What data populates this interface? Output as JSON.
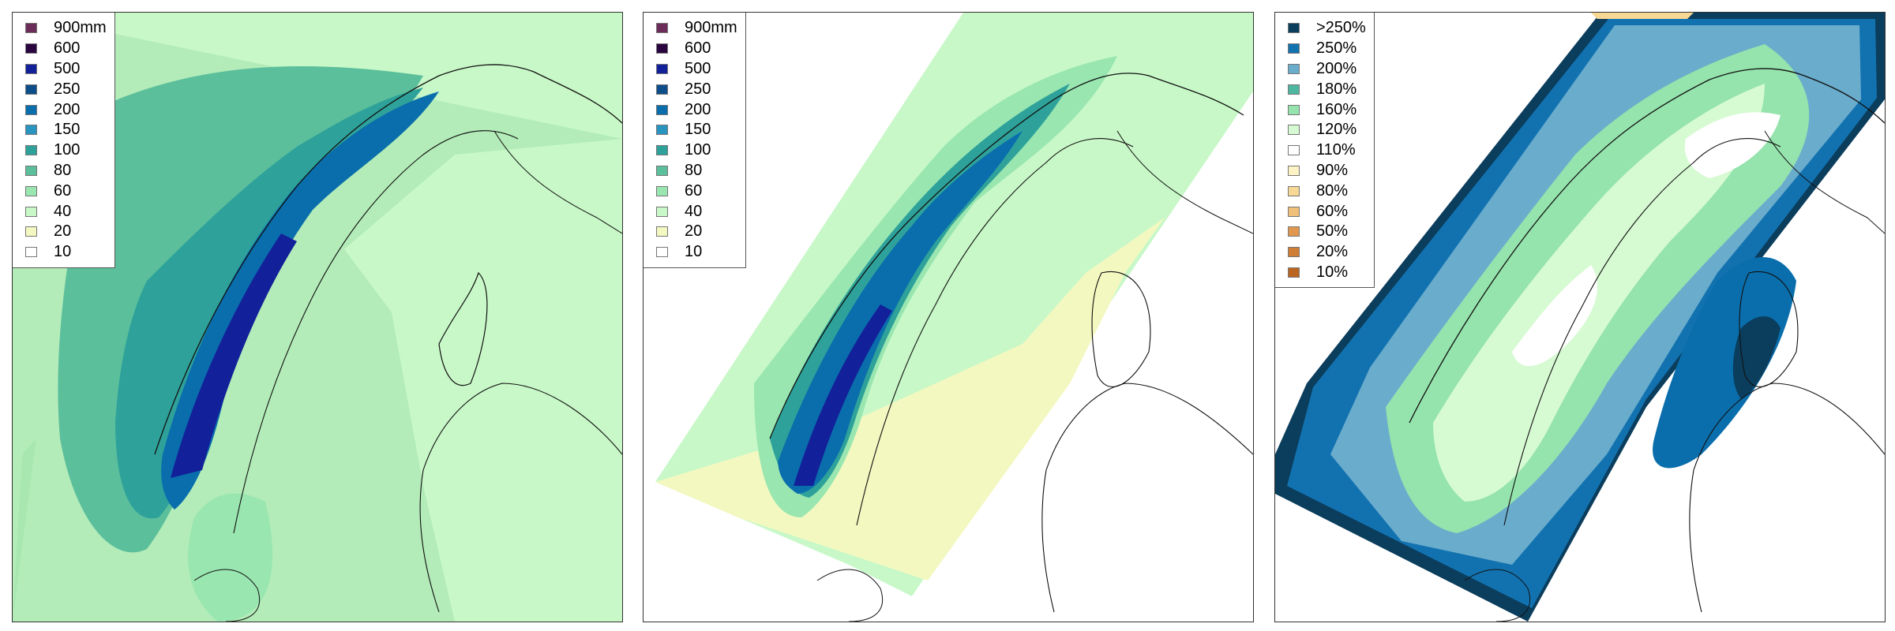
{
  "panels": [
    {
      "id": "panel-1",
      "legend": [
        {
          "label": "900mm",
          "color": "#6b2c5a"
        },
        {
          "label": "600",
          "color": "#2a0540"
        },
        {
          "label": "500",
          "color": "#12219a"
        },
        {
          "label": "250",
          "color": "#0c4d8a"
        },
        {
          "label": "200",
          "color": "#0a6eac"
        },
        {
          "label": "150",
          "color": "#2a94c0"
        },
        {
          "label": "100",
          "color": "#2ea29a"
        },
        {
          "label": "80",
          "color": "#5cbf9c"
        },
        {
          "label": "60",
          "color": "#99e6b0"
        },
        {
          "label": "40",
          "color": "#c8f8c8"
        },
        {
          "label": "20",
          "color": "#f3f8c0"
        },
        {
          "label": "10",
          "color": "#ffffff"
        }
      ]
    },
    {
      "id": "panel-2",
      "legend": [
        {
          "label": "900mm",
          "color": "#6b2c5a"
        },
        {
          "label": "600",
          "color": "#2a0540"
        },
        {
          "label": "500",
          "color": "#12219a"
        },
        {
          "label": "250",
          "color": "#0c4d8a"
        },
        {
          "label": "200",
          "color": "#0a6eac"
        },
        {
          "label": "150",
          "color": "#2a94c0"
        },
        {
          "label": "100",
          "color": "#2ea29a"
        },
        {
          "label": "80",
          "color": "#5cbf9c"
        },
        {
          "label": "60",
          "color": "#99e6b0"
        },
        {
          "label": "40",
          "color": "#c8f8c8"
        },
        {
          "label": "20",
          "color": "#f3f8c0"
        },
        {
          "label": "10",
          "color": "#ffffff"
        }
      ]
    },
    {
      "id": "panel-3",
      "legend": [
        {
          "label": ">250%",
          "color": "#0b3d5c"
        },
        {
          "label": "250%",
          "color": "#1272b0"
        },
        {
          "label": "200%",
          "color": "#6aaccc"
        },
        {
          "label": "180%",
          "color": "#4fb7a0"
        },
        {
          "label": "160%",
          "color": "#95e3ad"
        },
        {
          "label": "120%",
          "color": "#d6fad2"
        },
        {
          "label": "110%",
          "color": "#ffffff"
        },
        {
          "label": "90%",
          "color": "#fdf3c4"
        },
        {
          "label": "80%",
          "color": "#f7d894"
        },
        {
          "label": "60%",
          "color": "#f0c07a"
        },
        {
          "label": "50%",
          "color": "#e09850"
        },
        {
          "label": "20%",
          "color": "#cf7e36"
        },
        {
          "label": "10%",
          "color": "#bb6620"
        }
      ]
    }
  ]
}
